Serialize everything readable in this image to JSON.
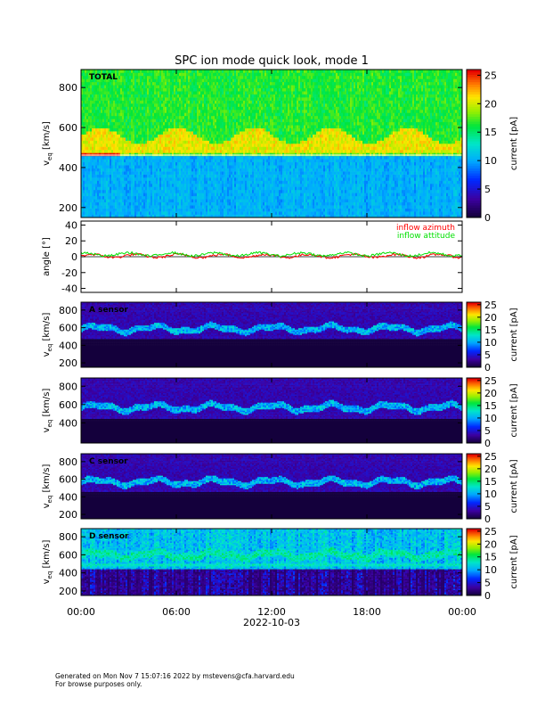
{
  "chart_data": [
    {
      "type": "heatmap",
      "title": "SPC ion mode quick look, mode 1",
      "panel_label": "TOTAL",
      "ylabel": "v_eq [km/s]",
      "ylabel_main": "v",
      "ylabel_sub": "eq",
      "ylabel_unit": "[km/s]",
      "yticks": [
        200,
        400,
        600,
        800
      ],
      "ylim": [
        150,
        890
      ],
      "colorbar": {
        "label": "current [pA]",
        "ticks": [
          0,
          5,
          10,
          15,
          20,
          25
        ],
        "range": [
          0,
          26
        ],
        "colormap": "rainbow"
      },
      "features": {
        "band_low_kms": 455,
        "band_high_kms": 560,
        "red_segment_hours": [
          0,
          2.4
        ]
      }
    },
    {
      "type": "line",
      "ylabel": "angle [°]",
      "yticks": [
        -40,
        -20,
        0,
        20,
        40
      ],
      "ylim": [
        -45,
        45
      ],
      "reference_line": 0,
      "series": [
        {
          "name": "inflow azimuth",
          "color": "#ff0000",
          "mean": 1,
          "amplitude": 2
        },
        {
          "name": "inflow attitude",
          "color": "#00e000",
          "mean": 3,
          "amplitude": 2
        }
      ]
    },
    {
      "type": "heatmap",
      "panel_label": "A sensor",
      "ylabel": "v_eq [km/s]",
      "ylabel_main": "v",
      "ylabel_sub": "eq",
      "ylabel_unit": "[km/s]",
      "yticks": [
        200,
        400,
        600,
        800
      ],
      "ylim": [
        150,
        890
      ],
      "colorbar": {
        "label": "current [pA]",
        "ticks": [
          0,
          5,
          10,
          15,
          20,
          25
        ],
        "range": [
          0,
          26
        ],
        "colormap": "rainbow_dark"
      },
      "features": {
        "cutoff_kms": 480,
        "ridge_kms": 590
      }
    },
    {
      "type": "heatmap",
      "panel_label": "",
      "ylabel": "v_eq [km/s]",
      "ylabel_main": "v",
      "ylabel_sub": "eq",
      "ylabel_unit": "[km/s]",
      "yticks": [
        400,
        600,
        800
      ],
      "ylim": [
        180,
        890
      ],
      "colorbar": {
        "label": "current [pA]",
        "ticks": [
          0,
          5,
          10,
          15,
          20,
          25
        ],
        "range": [
          0,
          26
        ],
        "colormap": "rainbow_dark"
      },
      "features": {
        "cutoff_kms": 440,
        "ridge_kms": 570
      }
    },
    {
      "type": "heatmap",
      "panel_label": "C sensor",
      "ylabel": "v_eq [km/s]",
      "ylabel_main": "v",
      "ylabel_sub": "eq",
      "ylabel_unit": "[km/s]",
      "yticks": [
        200,
        400,
        600,
        800
      ],
      "ylim": [
        150,
        890
      ],
      "colorbar": {
        "label": "current [pA]",
        "ticks": [
          0,
          5,
          10,
          15,
          20,
          25
        ],
        "range": [
          0,
          26
        ],
        "colormap": "rainbow_dark"
      },
      "features": {
        "cutoff_kms": 460,
        "ridge_kms": 570
      }
    },
    {
      "type": "heatmap",
      "panel_label": "D sensor",
      "ylabel": "v_eq [km/s]",
      "ylabel_main": "v",
      "ylabel_sub": "eq",
      "ylabel_unit": "[km/s]",
      "yticks": [
        200,
        400,
        600,
        800
      ],
      "ylim": [
        150,
        890
      ],
      "colorbar": {
        "label": "current [pA]",
        "ticks": [
          0,
          5,
          10,
          15,
          20,
          25
        ],
        "range": [
          0,
          26
        ],
        "colormap": "rainbow_dark"
      },
      "features": {
        "band_kms": 490,
        "ridge_kms": 600
      }
    }
  ],
  "xaxis": {
    "ticks": [
      "00:00",
      "06:00",
      "12:00",
      "18:00",
      "00:00"
    ],
    "tick_hours": [
      0,
      6,
      12,
      18,
      24
    ],
    "xlabel": "2022-10-03"
  },
  "footer": {
    "line1": "Generated on Mon Nov  7 15:07:16 2022 by mstevens@cfa.harvard.edu",
    "line2": "For browse purposes only."
  }
}
